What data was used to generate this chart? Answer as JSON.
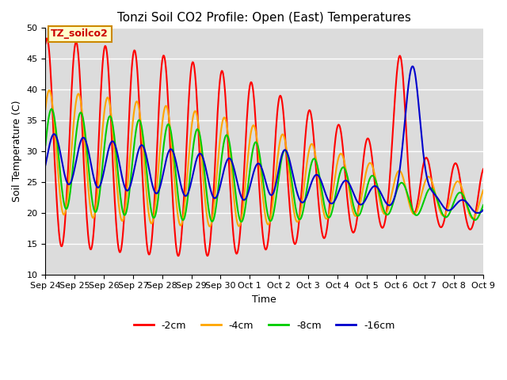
{
  "title": "Tonzi Soil CO2 Profile: Open (East) Temperatures",
  "xlabel": "Time",
  "ylabel": "Soil Temperature (C)",
  "ylim": [
    10,
    50
  ],
  "annotation_text": "TZ_soilco2",
  "bg_color": "#dcdcdc",
  "legend_entries": [
    "-2cm",
    "-4cm",
    "-8cm",
    "-16cm"
  ],
  "legend_colors": [
    "#ff0000",
    "#ffa500",
    "#00cc00",
    "#0000cc"
  ],
  "line_width": 1.5,
  "tick_labels": [
    "Sep 24",
    "Sep 25",
    "Sep 26",
    "Sep 27",
    "Sep 28",
    "Sep 29",
    "Sep 30",
    "Oct 1",
    "Oct 2",
    "Oct 3",
    "Oct 4",
    "Oct 5",
    "Oct 6",
    "Oct 7",
    "Oct 8",
    "Oct 9"
  ],
  "grid_color": "#ffffff",
  "yticks": [
    10,
    15,
    20,
    25,
    30,
    35,
    40,
    45,
    50
  ]
}
